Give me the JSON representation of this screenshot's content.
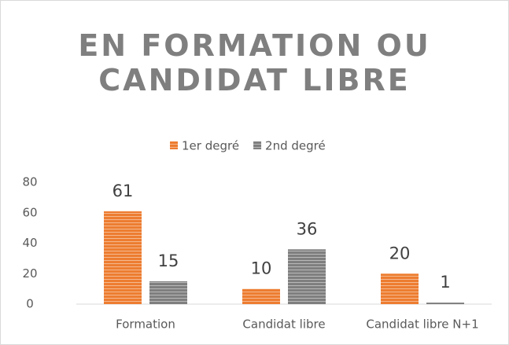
{
  "chart_data": {
    "type": "bar",
    "title": "EN FORMATION OU CANDIDAT LIBRE",
    "categories": [
      "Formation",
      "Candidat libre",
      "Candidat libre N+1"
    ],
    "series": [
      {
        "name": "1er degré",
        "color": "#ed7d31",
        "values": [
          61,
          10,
          20
        ]
      },
      {
        "name": "2nd degré",
        "color": "#7f7f7f",
        "values": [
          15,
          36,
          1
        ]
      }
    ],
    "ylim": [
      0,
      80
    ],
    "yticks": [
      0,
      20,
      40,
      60,
      80
    ],
    "legend": "top",
    "grid": false
  }
}
